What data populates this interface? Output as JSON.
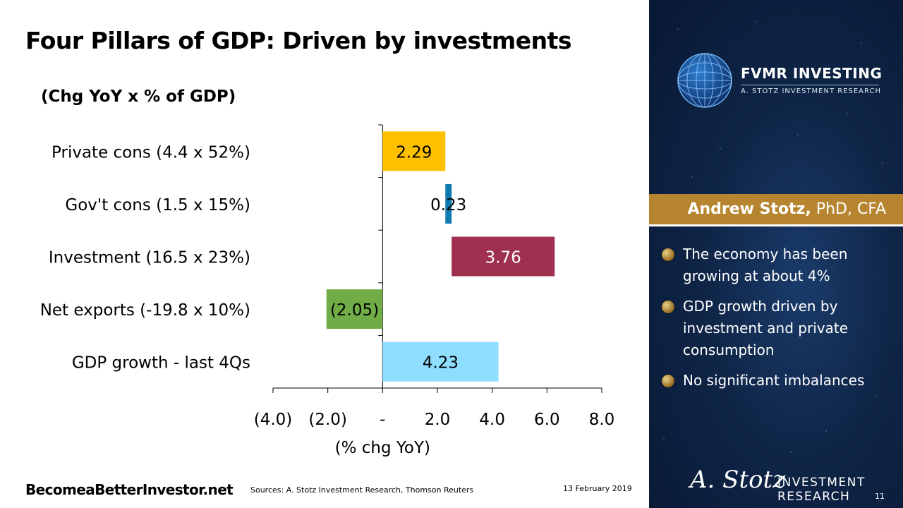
{
  "title": "Four Pillars of GDP: Driven by investments",
  "chart_data": {
    "type": "bar",
    "orientation": "horizontal",
    "subtitle": "(Chg YoY x % of GDP)",
    "xlabel": "(% chg YoY)",
    "xlim": [
      -4.0,
      8.0
    ],
    "x_ticks": [
      -4,
      -2,
      0,
      2,
      4,
      6,
      8
    ],
    "x_tick_labels": [
      "(4.0)",
      "(2.0)",
      "-",
      "2.0",
      "4.0",
      "6.0",
      "8.0"
    ],
    "categories": [
      "Private cons (4.4 x 52%)",
      "Gov't cons (1.5 x 15%)",
      "Investment (16.5 x 23%)",
      "Net exports (-19.8 x 10%)",
      "GDP growth - last 4Qs"
    ],
    "bars": [
      {
        "start": 0,
        "end": 2.29,
        "value": 2.29,
        "label": "2.29",
        "color": "#FFC000",
        "label_color": "#000000"
      },
      {
        "start": 2.29,
        "end": 2.52,
        "value": 0.23,
        "label": "0.23",
        "color": "#0F7AAF",
        "label_color": "#000000"
      },
      {
        "start": 2.52,
        "end": 6.28,
        "value": 3.76,
        "label": "3.76",
        "color": "#A0304F",
        "label_color": "#FFFFFF"
      },
      {
        "start": -2.05,
        "end": 0,
        "value": -2.05,
        "label": "(2.05)",
        "color": "#70AD47",
        "label_color": "#000000"
      },
      {
        "start": 0,
        "end": 4.23,
        "value": 4.23,
        "label": "4.23",
        "color": "#8FDDFF",
        "label_color": "#000000"
      }
    ],
    "grid": false,
    "legend": "none"
  },
  "footer": {
    "brand": "BecomeaBetterInvestor.net",
    "sources": "Sources: A. Stotz Investment Research, Thomson Reuters",
    "date": "13 February 2019",
    "page": "11"
  },
  "panel": {
    "logo_name": "FVMR INVESTING",
    "logo_tagline": "A. STOTZ INVESTMENT RESEARCH",
    "author_name": "Andrew Stotz,",
    "author_credentials": "PhD, CFA",
    "bullets": [
      "The economy has been growing at about 4%",
      "GDP growth driven by investment and private consumption",
      "No significant imbalances"
    ],
    "signature": "A. Stotz",
    "signature_line1": "INVESTMENT",
    "signature_line2": "RESEARCH"
  }
}
